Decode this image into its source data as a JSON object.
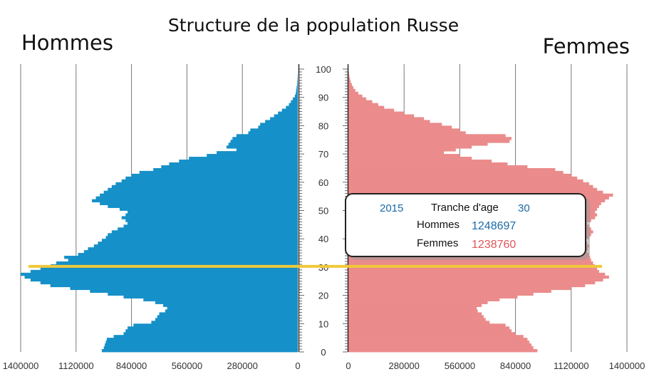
{
  "chart_data": {
    "type": "bar",
    "title": "Structure de la population Russe",
    "left_label": "Hommes",
    "right_label": "Femmes",
    "colors": {
      "male": "#1690c8",
      "female": "#eb8b8b",
      "highlight": "#f0c83a"
    },
    "male_ticks": [
      "1400000",
      "1120000",
      "840000",
      "560000",
      "280000",
      "0"
    ],
    "female_ticks": [
      "0",
      "280000",
      "560000",
      "840000",
      "1120000",
      "1400000"
    ],
    "age_ticks": [
      "0",
      "10",
      "20",
      "30",
      "40",
      "50",
      "60",
      "70",
      "80",
      "90",
      "100"
    ],
    "xlim": [
      0,
      1400000
    ],
    "ylim": [
      0,
      100
    ],
    "highlight_age": 30,
    "age_step": 1,
    "male_values": [
      990000,
      980000,
      975000,
      970000,
      965000,
      930000,
      880000,
      870000,
      860000,
      830000,
      740000,
      720000,
      710000,
      700000,
      670000,
      660000,
      680000,
      720000,
      780000,
      880000,
      960000,
      1050000,
      1150000,
      1250000,
      1300000,
      1350000,
      1380000,
      1400000,
      1350000,
      1300000,
      1248697,
      1220000,
      1160000,
      1180000,
      1110000,
      1080000,
      1060000,
      1030000,
      1010000,
      990000,
      970000,
      960000,
      940000,
      910000,
      880000,
      860000,
      870000,
      890000,
      870000,
      860000,
      900000,
      960000,
      1000000,
      1040000,
      1020000,
      1000000,
      980000,
      960000,
      940000,
      920000,
      890000,
      870000,
      840000,
      800000,
      730000,
      690000,
      650000,
      600000,
      550000,
      460000,
      410000,
      310000,
      360000,
      350000,
      340000,
      330000,
      310000,
      250000,
      240000,
      200000,
      190000,
      165000,
      140000,
      120000,
      100000,
      80000,
      60000,
      45000,
      35000,
      25000,
      15000,
      10000,
      8000,
      6000,
      4000,
      3000,
      2000,
      1000,
      500,
      200,
      100
    ],
    "female_values": [
      950000,
      930000,
      920000,
      910000,
      900000,
      880000,
      840000,
      820000,
      810000,
      790000,
      710000,
      690000,
      680000,
      670000,
      650000,
      645000,
      670000,
      700000,
      760000,
      850000,
      930000,
      1020000,
      1120000,
      1190000,
      1240000,
      1280000,
      1310000,
      1290000,
      1260000,
      1250000,
      1238760,
      1230000,
      1220000,
      1215000,
      1210000,
      1200000,
      1205000,
      1210000,
      1200000,
      1190000,
      1210000,
      1220000,
      1230000,
      1220000,
      1210000,
      1200000,
      1220000,
      1240000,
      1250000,
      1240000,
      1250000,
      1260000,
      1270000,
      1290000,
      1310000,
      1330000,
      1280000,
      1250000,
      1230000,
      1210000,
      1180000,
      1150000,
      1120000,
      1080000,
      1040000,
      900000,
      800000,
      720000,
      620000,
      560000,
      480000,
      540000,
      620000,
      700000,
      810000,
      820000,
      790000,
      590000,
      560000,
      520000,
      470000,
      410000,
      380000,
      330000,
      280000,
      230000,
      180000,
      150000,
      120000,
      90000,
      70000,
      50000,
      35000,
      25000,
      18000,
      12000,
      8000,
      5000,
      3000,
      1500,
      800
    ],
    "tooltip": {
      "year": "2015",
      "age_label": "Tranche d'age",
      "age_value": "30",
      "male_label": "Hommes",
      "male_value": "1248697",
      "female_label": "Femmes",
      "female_value": "1238760"
    }
  }
}
